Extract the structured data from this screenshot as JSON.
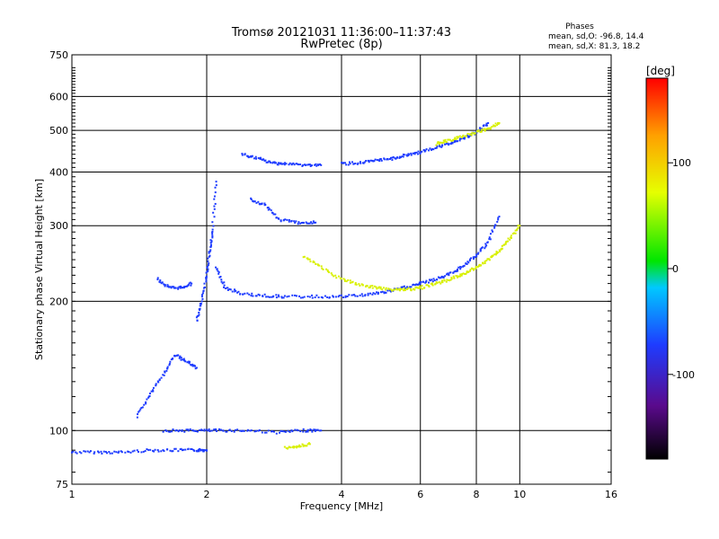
{
  "chart_data": {
    "type": "scatter",
    "title": "Tromsø 20121031 11:36:00–11:37:43",
    "subtitle": "RwPretec (8p)",
    "xlabel": "Frequency [MHz]",
    "ylabel": "Stationary phase Virtual Height [km]",
    "x_scale": "log2",
    "y_scale": "log",
    "xlim": [
      1,
      16
    ],
    "ylim": [
      75,
      750
    ],
    "x_ticks": [
      1,
      2,
      4,
      6,
      8,
      10,
      16
    ],
    "x_tick_labels": [
      "1",
      "2",
      "4",
      "6",
      "8",
      "10",
      "16"
    ],
    "y_ticks": [
      75,
      100,
      200,
      300,
      400,
      500,
      600,
      750
    ],
    "y_tick_labels": [
      "75",
      "100",
      "200",
      "300",
      "400",
      "500",
      "600",
      "750"
    ],
    "grid": true,
    "phase_info": {
      "title": "Phases",
      "line_o": "mean, sd,O: -96.8, 14.4",
      "line_x": "mean, sd,X:  81.3, 18.2"
    },
    "colorbar": {
      "label": "[deg]",
      "ticks": [
        100,
        0,
        -100
      ],
      "tick_labels": [
        "100",
        "0",
        "-100"
      ],
      "range": [
        -180,
        180
      ],
      "colors": [
        "#000000",
        "#5a0a8c",
        "#1e3cff",
        "#00c8ff",
        "#00e600",
        "#e6ff00",
        "#ffa000",
        "#ff0000"
      ]
    },
    "series": [
      {
        "name": "O",
        "color": "#1e3cff",
        "traces": [
          {
            "x": [
              1.0,
              1.15,
              1.3,
              1.5,
              1.7,
              1.9,
              2.0
            ],
            "y": [
              89,
              89,
              89,
              90,
              90,
              90,
              90
            ]
          },
          {
            "x": [
              1.6,
              1.8,
              2.0,
              2.2,
              2.5,
              2.9,
              3.3,
              3.6
            ],
            "y": [
              100,
              100,
              100,
              100,
              100,
              99,
              100,
              100
            ]
          },
          {
            "x": [
              1.4,
              1.5,
              1.6,
              1.7,
              1.8,
              1.9
            ],
            "y": [
              108,
              122,
              135,
              150,
              145,
              140
            ]
          },
          {
            "x": [
              1.55,
              1.65,
              1.75,
              1.85
            ],
            "y": [
              225,
              215,
              215,
              220
            ]
          },
          {
            "x": [
              1.9,
              1.95,
              2.0,
              2.03,
              2.06,
              2.1
            ],
            "y": [
              180,
              200,
              230,
              260,
              290,
              380
            ]
          },
          {
            "x": [
              2.1,
              2.2,
              2.4,
              2.7,
              3.0,
              3.5,
              4.0,
              4.5,
              5.0,
              5.5,
              6.0
            ],
            "y": [
              240,
              215,
              208,
              206,
              205,
              205,
              205,
              207,
              210,
              215,
              220
            ]
          },
          {
            "x": [
              6.0,
              6.5,
              7.0,
              7.5,
              8.0,
              8.5,
              9.0
            ],
            "y": [
              220,
              225,
              232,
              242,
              255,
              275,
              315
            ]
          },
          {
            "x": [
              2.4,
              2.6,
              2.8,
              3.0,
              3.3,
              3.6
            ],
            "y": [
              440,
              430,
              420,
              418,
              415,
              415
            ]
          },
          {
            "x": [
              4.0,
              4.4,
              4.8,
              5.2,
              5.6,
              6.0,
              6.5,
              7.0,
              7.5,
              8.0,
              8.5
            ],
            "y": [
              418,
              420,
              425,
              430,
              438,
              445,
              455,
              468,
              480,
              495,
              520
            ]
          },
          {
            "x": [
              2.5,
              2.7,
              2.9,
              3.2,
              3.5
            ],
            "y": [
              345,
              335,
              310,
              305,
              305
            ]
          }
        ]
      },
      {
        "name": "X",
        "color": "#d8f000",
        "traces": [
          {
            "x": [
              3.3,
              3.6,
              4.0,
              4.4,
              4.8,
              5.2,
              5.6,
              6.0
            ],
            "y": [
              255,
              240,
              225,
              218,
              215,
              213,
              213,
              215
            ]
          },
          {
            "x": [
              6.0,
              6.5,
              7.0,
              7.5,
              8.0,
              8.5,
              9.0,
              9.5,
              10.0
            ],
            "y": [
              215,
              220,
              225,
              232,
              240,
              250,
              262,
              280,
              300
            ]
          },
          {
            "x": [
              6.5,
              7.0,
              7.5,
              8.0,
              8.5,
              9.0
            ],
            "y": [
              465,
              475,
              485,
              495,
              505,
              520
            ]
          },
          {
            "x": [
              3.0,
              3.2,
              3.4
            ],
            "y": [
              91,
              92,
              93
            ]
          }
        ]
      }
    ]
  }
}
